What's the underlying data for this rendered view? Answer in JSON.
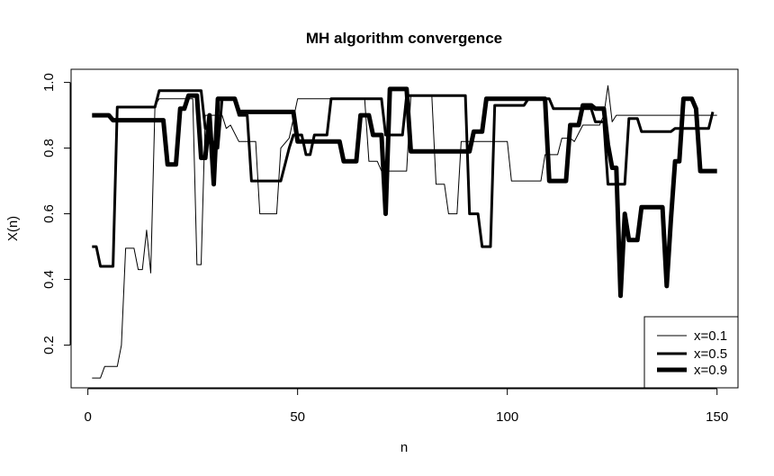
{
  "chart_data": {
    "type": "line",
    "title": "MH algorithm convergence",
    "xlabel": "n",
    "ylabel": "X(n)",
    "xlim": [
      -4,
      155
    ],
    "ylim": [
      0.07,
      1.04
    ],
    "xticks": [
      0,
      50,
      100,
      150
    ],
    "yticks": [
      0.2,
      0.4,
      0.6,
      0.8,
      1.0
    ],
    "xtick_labels": [
      "0",
      "50",
      "100",
      "150"
    ],
    "ytick_labels": [
      "0.2",
      "0.4",
      "0.6",
      "0.8",
      "1.0"
    ],
    "grid": false,
    "legend_position": "bottom-right",
    "series": [
      {
        "name": "x=0.1",
        "stroke": "#000000",
        "points": [
          [
            1,
            0.1
          ],
          [
            3,
            0.1
          ],
          [
            4,
            0.135
          ],
          [
            6,
            0.135
          ],
          [
            7,
            0.135
          ],
          [
            8,
            0.2
          ],
          [
            9,
            0.495
          ],
          [
            11,
            0.495
          ],
          [
            12,
            0.43
          ],
          [
            13,
            0.43
          ],
          [
            14,
            0.55
          ],
          [
            15,
            0.42
          ],
          [
            16,
            0.93
          ],
          [
            17,
            0.95
          ],
          [
            25,
            0.95
          ],
          [
            26,
            0.445
          ],
          [
            27,
            0.445
          ],
          [
            28,
            0.9
          ],
          [
            32,
            0.9
          ],
          [
            33,
            0.86
          ],
          [
            34,
            0.87
          ],
          [
            36,
            0.82
          ],
          [
            40,
            0.82
          ],
          [
            41,
            0.6
          ],
          [
            45,
            0.6
          ],
          [
            46,
            0.8
          ],
          [
            48,
            0.83
          ],
          [
            50,
            0.95
          ],
          [
            66,
            0.95
          ],
          [
            67,
            0.76
          ],
          [
            69,
            0.76
          ],
          [
            70,
            0.73
          ],
          [
            76,
            0.73
          ],
          [
            77,
            0.96
          ],
          [
            82,
            0.96
          ],
          [
            83,
            0.69
          ],
          [
            85,
            0.69
          ],
          [
            86,
            0.6
          ],
          [
            88,
            0.6
          ],
          [
            89,
            0.82
          ],
          [
            100,
            0.82
          ],
          [
            101,
            0.7
          ],
          [
            108,
            0.7
          ],
          [
            109,
            0.78
          ],
          [
            112,
            0.78
          ],
          [
            113,
            0.83
          ],
          [
            115,
            0.83
          ],
          [
            116,
            0.82
          ],
          [
            118,
            0.87
          ],
          [
            122,
            0.87
          ],
          [
            123,
            0.9
          ],
          [
            124,
            0.99
          ],
          [
            125,
            0.88
          ],
          [
            126,
            0.9
          ],
          [
            150,
            0.9
          ]
        ]
      },
      {
        "name": "x=0.5",
        "stroke": "#000000",
        "points": [
          [
            1,
            0.5
          ],
          [
            2,
            0.5
          ],
          [
            3,
            0.44
          ],
          [
            6,
            0.44
          ],
          [
            7,
            0.925
          ],
          [
            16,
            0.925
          ],
          [
            17,
            0.975
          ],
          [
            27,
            0.975
          ],
          [
            28,
            0.86
          ],
          [
            29,
            0.86
          ],
          [
            30,
            0.8
          ],
          [
            31,
            0.8
          ],
          [
            32,
            0.95
          ],
          [
            35,
            0.95
          ],
          [
            36,
            0.9
          ],
          [
            38,
            0.9
          ],
          [
            39,
            0.7
          ],
          [
            46,
            0.7
          ],
          [
            47,
            0.75
          ],
          [
            48,
            0.8
          ],
          [
            49,
            0.84
          ],
          [
            51,
            0.84
          ],
          [
            52,
            0.78
          ],
          [
            53,
            0.78
          ],
          [
            54,
            0.84
          ],
          [
            57,
            0.84
          ],
          [
            58,
            0.95
          ],
          [
            70,
            0.95
          ],
          [
            71,
            0.84
          ],
          [
            75,
            0.84
          ],
          [
            76,
            0.96
          ],
          [
            90,
            0.96
          ],
          [
            91,
            0.6
          ],
          [
            93,
            0.6
          ],
          [
            94,
            0.5
          ],
          [
            96,
            0.5
          ],
          [
            97,
            0.93
          ],
          [
            104,
            0.93
          ],
          [
            105,
            0.95
          ],
          [
            110,
            0.95
          ],
          [
            111,
            0.92
          ],
          [
            120,
            0.92
          ],
          [
            121,
            0.88
          ],
          [
            123,
            0.88
          ],
          [
            124,
            0.69
          ],
          [
            128,
            0.69
          ],
          [
            129,
            0.89
          ],
          [
            131,
            0.89
          ],
          [
            132,
            0.85
          ],
          [
            139,
            0.85
          ],
          [
            140,
            0.86
          ],
          [
            148,
            0.86
          ],
          [
            149,
            0.91
          ]
        ]
      },
      {
        "name": "x=0.9",
        "stroke": "#000000",
        "points": [
          [
            1,
            0.9
          ],
          [
            5,
            0.9
          ],
          [
            6,
            0.885
          ],
          [
            18,
            0.885
          ],
          [
            19,
            0.75
          ],
          [
            21,
            0.75
          ],
          [
            22,
            0.92
          ],
          [
            23,
            0.92
          ],
          [
            24,
            0.96
          ],
          [
            26,
            0.96
          ],
          [
            27,
            0.77
          ],
          [
            28,
            0.77
          ],
          [
            29,
            0.9
          ],
          [
            30,
            0.69
          ],
          [
            31,
            0.95
          ],
          [
            35,
            0.95
          ],
          [
            36,
            0.91
          ],
          [
            49,
            0.91
          ],
          [
            50,
            0.82
          ],
          [
            60,
            0.82
          ],
          [
            61,
            0.76
          ],
          [
            64,
            0.76
          ],
          [
            65,
            0.9
          ],
          [
            67,
            0.9
          ],
          [
            68,
            0.84
          ],
          [
            70,
            0.84
          ],
          [
            71,
            0.6
          ],
          [
            72,
            0.98
          ],
          [
            76,
            0.98
          ],
          [
            77,
            0.79
          ],
          [
            91,
            0.79
          ],
          [
            92,
            0.85
          ],
          [
            94,
            0.85
          ],
          [
            95,
            0.95
          ],
          [
            109,
            0.95
          ],
          [
            110,
            0.7
          ],
          [
            114,
            0.7
          ],
          [
            115,
            0.87
          ],
          [
            117,
            0.87
          ],
          [
            118,
            0.93
          ],
          [
            120,
            0.93
          ],
          [
            121,
            0.92
          ],
          [
            123,
            0.92
          ],
          [
            124,
            0.81
          ],
          [
            125,
            0.74
          ],
          [
            126,
            0.74
          ],
          [
            127,
            0.35
          ],
          [
            128,
            0.6
          ],
          [
            129,
            0.52
          ],
          [
            131,
            0.52
          ],
          [
            132,
            0.62
          ],
          [
            137,
            0.62
          ],
          [
            138,
            0.38
          ],
          [
            139,
            0.58
          ],
          [
            140,
            0.76
          ],
          [
            141,
            0.76
          ],
          [
            142,
            0.95
          ],
          [
            144,
            0.95
          ],
          [
            145,
            0.92
          ],
          [
            146,
            0.73
          ],
          [
            150,
            0.73
          ]
        ]
      }
    ]
  }
}
